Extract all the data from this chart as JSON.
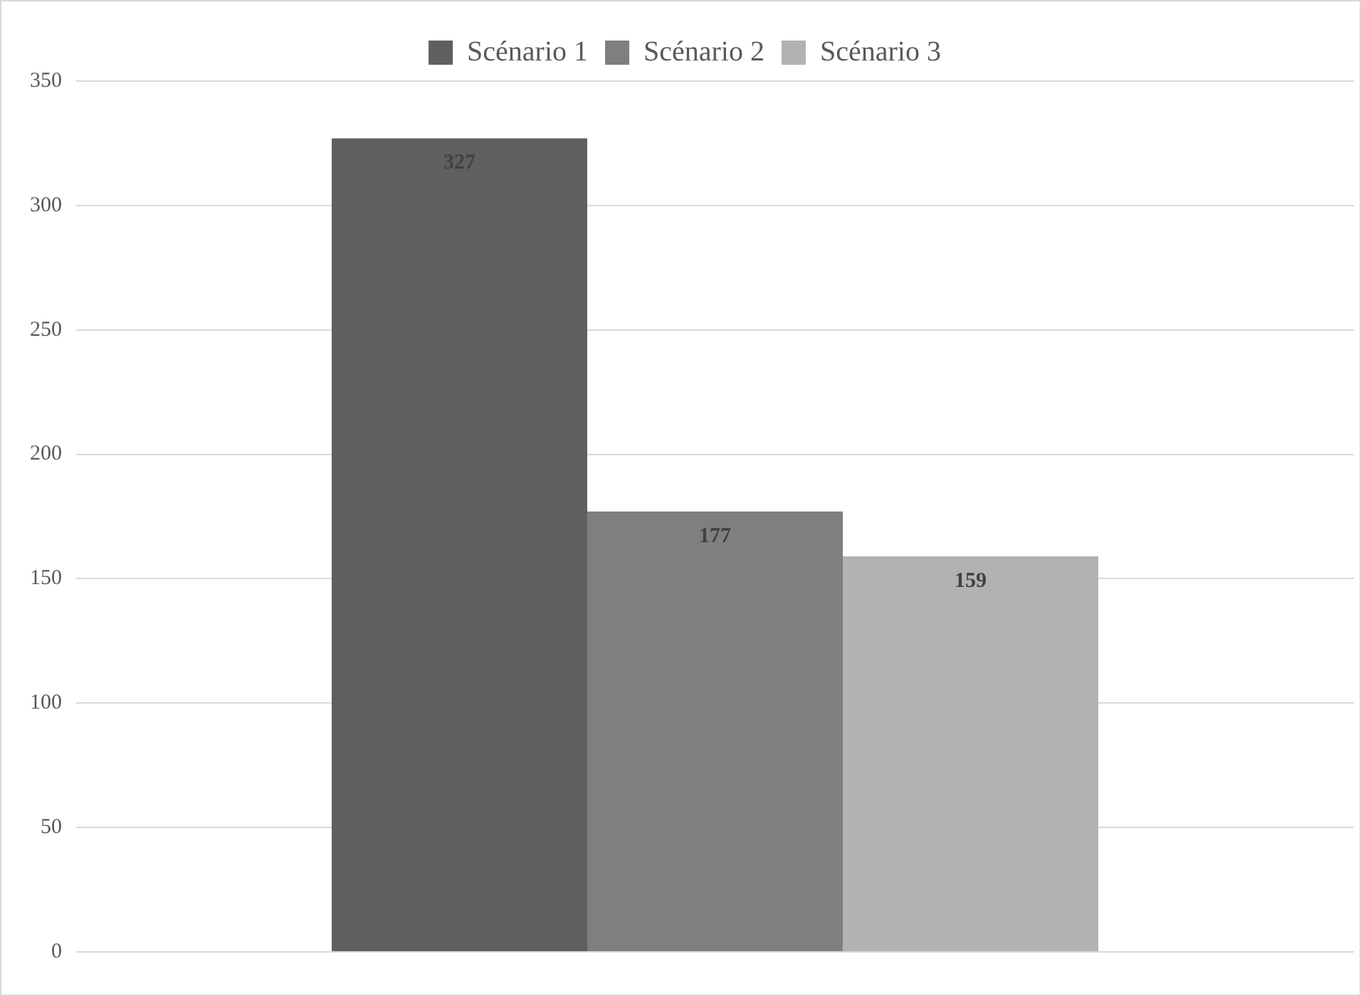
{
  "chart_data": {
    "type": "bar",
    "categories": [
      null
    ],
    "series": [
      {
        "name": "Scénario 1",
        "color": "#5f5f5f",
        "values": [
          327
        ]
      },
      {
        "name": "Scénario 2",
        "color": "#7f7f7f",
        "values": [
          177
        ]
      },
      {
        "name": "Scénario 3",
        "color": "#b2b2b2",
        "values": [
          159
        ]
      }
    ],
    "ylim": [
      0,
      350
    ],
    "yticks": [
      0,
      50,
      100,
      150,
      200,
      250,
      300,
      350
    ],
    "grid": "y",
    "legend": "top",
    "data_labels": true
  }
}
